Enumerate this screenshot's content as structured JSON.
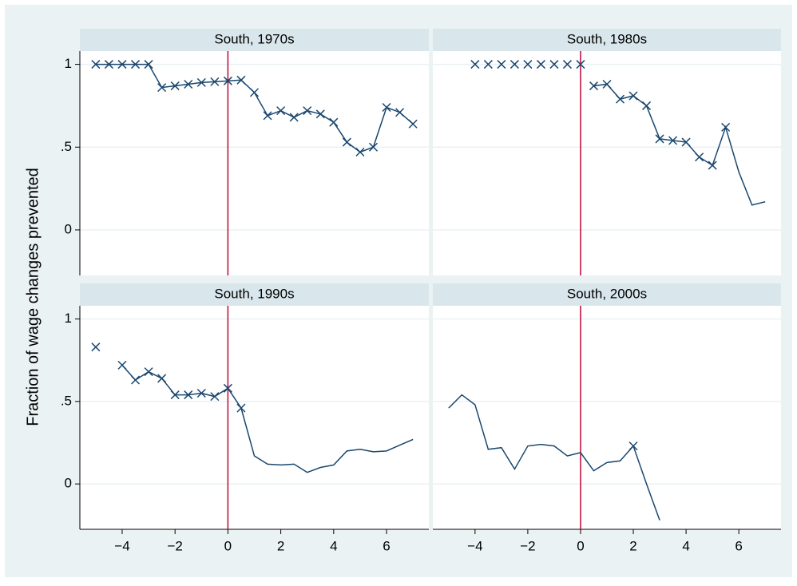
{
  "chart_data": {
    "type": "line",
    "ylabel": "Fraction of wage changes prevented",
    "x": [
      -5,
      -4.5,
      -4,
      -3.5,
      -3,
      -2.5,
      -2,
      -1.5,
      -1,
      -0.5,
      0,
      0.5,
      1,
      1.5,
      2,
      2.5,
      3,
      3.5,
      4,
      4.5,
      5,
      5.5,
      6,
      6.5,
      7
    ],
    "xlim": [
      -5.6,
      7.6
    ],
    "ylim": [
      -0.275,
      1.08
    ],
    "xticks": [
      {
        "value": -4,
        "label": "−4"
      },
      {
        "value": -2,
        "label": "−2"
      },
      0,
      2,
      4,
      6
    ],
    "yticks": [
      0,
      {
        "value": 0.5,
        "label": ".5"
      },
      1
    ],
    "xline": 0,
    "xline_color": "#c10534",
    "color": "#1a476f",
    "grid": true,
    "panels": [
      {
        "title": "South, 1970s",
        "line": [
          1,
          1,
          1,
          1,
          1,
          0.86,
          0.87,
          0.88,
          0.89,
          0.895,
          0.9,
          0.905,
          0.83,
          0.69,
          0.72,
          0.68,
          0.72,
          0.7,
          0.65,
          0.53,
          0.47,
          0.5,
          0.74,
          0.71,
          0.64
        ],
        "markers": [
          1,
          1,
          1,
          1,
          1,
          0.86,
          0.87,
          0.88,
          0.89,
          0.895,
          0.9,
          0.905,
          0.83,
          0.69,
          0.72,
          0.68,
          0.72,
          0.7,
          0.65,
          0.53,
          0.47,
          0.5,
          0.74,
          0.71,
          0.64
        ]
      },
      {
        "title": "South, 1980s",
        "line": [
          null,
          null,
          null,
          null,
          null,
          null,
          null,
          null,
          null,
          null,
          null,
          0.87,
          0.88,
          0.79,
          0.81,
          0.75,
          0.55,
          0.54,
          0.53,
          0.44,
          0.39,
          0.62,
          0.35,
          0.15,
          0.17
        ],
        "markers": [
          null,
          null,
          1,
          1,
          1,
          1,
          1,
          1,
          1,
          1,
          1,
          0.87,
          0.88,
          0.79,
          0.81,
          0.75,
          0.55,
          0.54,
          0.53,
          0.44,
          0.39,
          0.62,
          null,
          null,
          null
        ]
      },
      {
        "title": "South, 1990s",
        "line": [
          null,
          null,
          0.72,
          0.63,
          0.68,
          0.64,
          0.54,
          0.54,
          0.55,
          0.53,
          0.58,
          0.46,
          0.17,
          0.12,
          0.115,
          0.12,
          0.07,
          0.1,
          0.115,
          0.2,
          0.21,
          0.195,
          0.2,
          0.235,
          0.27
        ],
        "markers": [
          0.83,
          null,
          0.72,
          0.63,
          0.68,
          0.64,
          0.54,
          0.54,
          0.55,
          0.53,
          0.58,
          0.46,
          null,
          null,
          null,
          null,
          null,
          null,
          null,
          null,
          null,
          null,
          null,
          null,
          null
        ]
      },
      {
        "title": "South, 2000s",
        "line": [
          0.46,
          0.54,
          0.48,
          0.21,
          0.22,
          0.09,
          0.23,
          0.24,
          0.23,
          0.17,
          0.19,
          0.08,
          0.13,
          0.14,
          0.23,
          0.0,
          -0.22,
          null,
          null,
          null,
          null,
          null,
          null,
          null,
          null
        ],
        "markers": [
          null,
          null,
          null,
          null,
          null,
          null,
          null,
          null,
          null,
          null,
          null,
          null,
          null,
          null,
          0.23,
          null,
          null,
          null,
          null,
          null,
          null,
          null,
          null,
          null,
          null
        ]
      }
    ]
  }
}
